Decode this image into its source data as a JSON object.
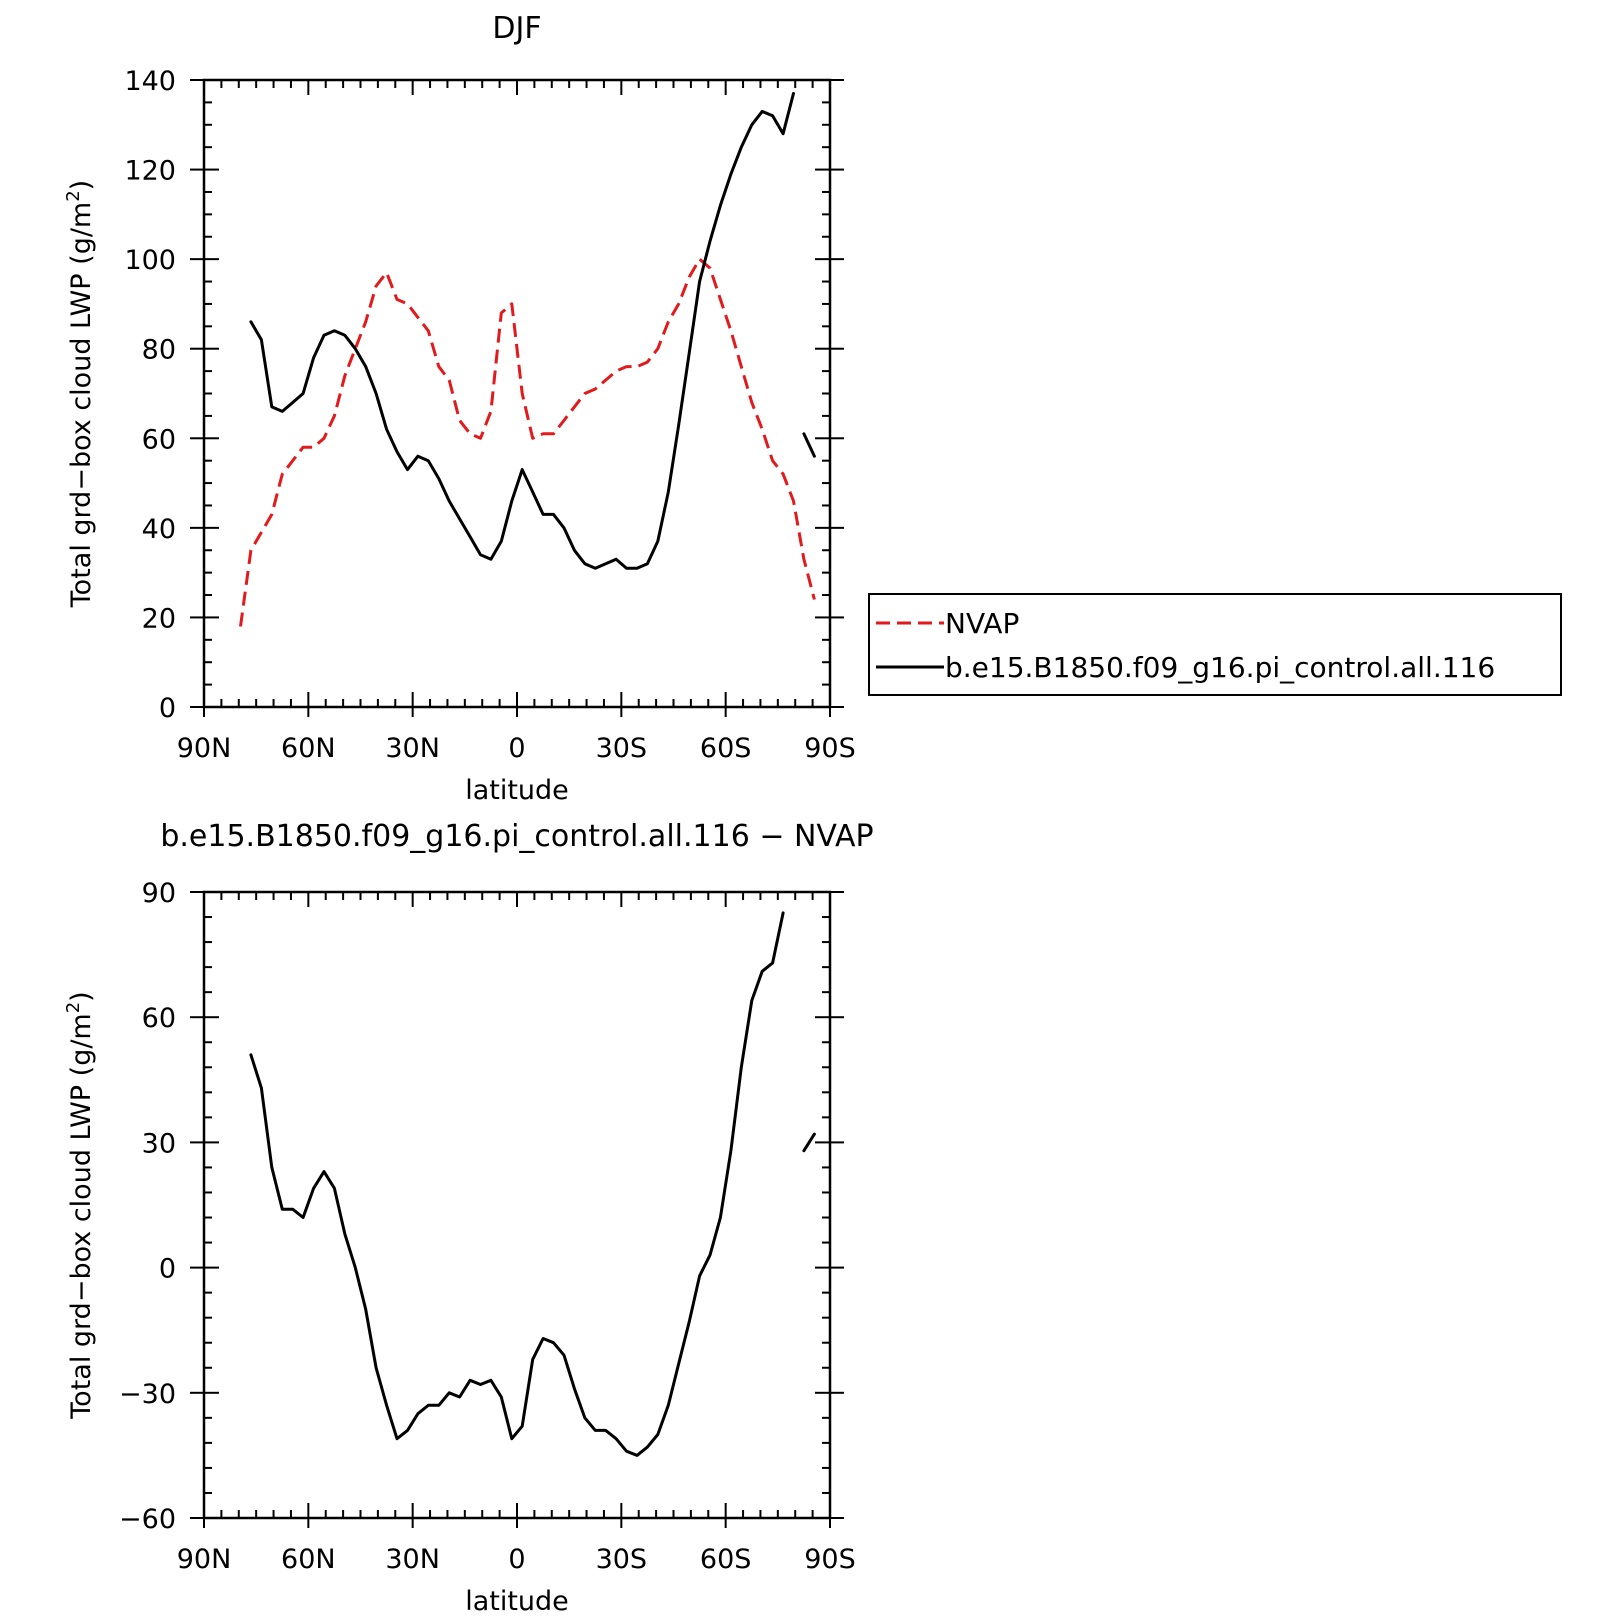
{
  "figure": {
    "panel1_title": "DJF",
    "panel2_title": "b.e15.B1850.f09_g16.pi_control.all.116 − NVAP",
    "legend": {
      "items": [
        {
          "label": "NVAP",
          "color": "#e31a1c",
          "dash": true
        },
        {
          "label": "b.e15.B1850.f09_g16.pi_control.all.116",
          "color": "#000000",
          "dash": false
        }
      ]
    }
  },
  "chart_data": [
    {
      "type": "line",
      "title": "DJF",
      "xlabel": "latitude",
      "ylabel_text": "Total grd−box cloud LWP (g/m",
      "ylabel_sup": "2",
      "ylabel_close": ")",
      "xlim": [
        90,
        -90
      ],
      "ylim": [
        0,
        140
      ],
      "xticks": [
        90,
        60,
        30,
        0,
        -30,
        -60,
        -90
      ],
      "xticklabels": [
        "90N",
        "60N",
        "30N",
        "0",
        "30S",
        "60S",
        "90S"
      ],
      "yticks": [
        0,
        20,
        40,
        60,
        80,
        100,
        120,
        140
      ],
      "yticklabels": [
        "0",
        "20",
        "40",
        "60",
        "80",
        "100",
        "120",
        "140"
      ],
      "legend_position": "right",
      "series": [
        {
          "name": "NVAP",
          "color": "#e31a1c",
          "dash": true,
          "segments": [
            [
              [
                79.5,
                18
              ],
              [
                76.5,
                35
              ],
              [
                73.5,
                39
              ],
              [
                70.5,
                43
              ],
              [
                67.5,
                52
              ],
              [
                64.5,
                55
              ],
              [
                61.5,
                58
              ],
              [
                58.5,
                58
              ],
              [
                55.5,
                60
              ],
              [
                52.5,
                65
              ],
              [
                49.5,
                74
              ],
              [
                46.5,
                80
              ],
              [
                43.5,
                86
              ],
              [
                40.5,
                94
              ],
              [
                37.5,
                97
              ],
              [
                34.5,
                91
              ],
              [
                31.5,
                90
              ],
              [
                28.5,
                87
              ],
              [
                25.5,
                84
              ],
              [
                22.5,
                76
              ],
              [
                19.5,
                73
              ],
              [
                16.5,
                64
              ],
              [
                13.5,
                61
              ],
              [
                10.5,
                60
              ],
              [
                7.5,
                66
              ],
              [
                4.5,
                88
              ],
              [
                1.5,
                90
              ],
              [
                -1.5,
                70
              ],
              [
                -4.5,
                60
              ],
              [
                -7.5,
                61
              ],
              [
                -10.5,
                61
              ],
              [
                -13.5,
                64
              ],
              [
                -16.5,
                67
              ],
              [
                -19.5,
                70
              ],
              [
                -22.5,
                71
              ],
              [
                -25.5,
                73
              ],
              [
                -28.5,
                75
              ],
              [
                -31.5,
                76
              ],
              [
                -34.5,
                76
              ],
              [
                -37.5,
                77
              ],
              [
                -40.5,
                80
              ],
              [
                -43.5,
                86
              ],
              [
                -46.5,
                90
              ],
              [
                -49.5,
                96
              ],
              [
                -52.5,
                100
              ],
              [
                -55.5,
                98
              ],
              [
                -58.5,
                91
              ],
              [
                -61.5,
                84
              ],
              [
                -64.5,
                76
              ],
              [
                -67.5,
                68
              ],
              [
                -70.5,
                62
              ],
              [
                -73.5,
                55
              ],
              [
                -76.5,
                52
              ],
              [
                -79.5,
                46
              ],
              [
                -82.5,
                33
              ],
              [
                -85.5,
                24
              ]
            ]
          ]
        },
        {
          "name": "b.e15.B1850.f09_g16.pi_control.all.116",
          "color": "#000000",
          "dash": false,
          "segments": [
            [
              [
                76.5,
                86
              ],
              [
                73.5,
                82
              ],
              [
                70.5,
                67
              ],
              [
                67.5,
                66
              ],
              [
                64.5,
                68
              ],
              [
                61.5,
                70
              ],
              [
                58.5,
                78
              ],
              [
                55.5,
                83
              ],
              [
                52.5,
                84
              ],
              [
                49.5,
                83
              ],
              [
                46.5,
                80
              ],
              [
                43.5,
                76
              ],
              [
                40.5,
                70
              ],
              [
                37.5,
                62
              ],
              [
                34.5,
                57
              ],
              [
                31.5,
                53
              ],
              [
                28.5,
                56
              ],
              [
                25.5,
                55
              ],
              [
                22.5,
                51
              ],
              [
                19.5,
                46
              ],
              [
                16.5,
                42
              ],
              [
                13.5,
                38
              ],
              [
                10.5,
                34
              ],
              [
                7.5,
                33
              ],
              [
                4.5,
                37
              ],
              [
                1.5,
                46
              ],
              [
                -1.5,
                53
              ],
              [
                -4.5,
                48
              ],
              [
                -7.5,
                43
              ],
              [
                -10.5,
                43
              ],
              [
                -13.5,
                40
              ],
              [
                -16.5,
                35
              ],
              [
                -19.5,
                32
              ],
              [
                -22.5,
                31
              ],
              [
                -25.5,
                32
              ],
              [
                -28.5,
                33
              ],
              [
                -31.5,
                31
              ],
              [
                -34.5,
                31
              ],
              [
                -37.5,
                32
              ],
              [
                -40.5,
                37
              ],
              [
                -43.5,
                48
              ],
              [
                -46.5,
                63
              ],
              [
                -49.5,
                79
              ],
              [
                -52.5,
                95
              ],
              [
                -55.5,
                104
              ],
              [
                -58.5,
                112
              ],
              [
                -61.5,
                119
              ],
              [
                -64.5,
                125
              ],
              [
                -67.5,
                130
              ],
              [
                -70.5,
                133
              ],
              [
                -73.5,
                132
              ],
              [
                -76.5,
                128
              ],
              [
                -79.5,
                137
              ]
            ],
            [
              [
                -82.5,
                61
              ],
              [
                -85.5,
                56
              ]
            ]
          ]
        }
      ]
    },
    {
      "type": "line",
      "title": "b.e15.B1850.f09_g16.pi_control.all.116 − NVAP",
      "xlabel": "latitude",
      "ylabel_text": "Total grd−box cloud LWP (g/m",
      "ylabel_sup": "2",
      "ylabel_close": ")",
      "xlim": [
        90,
        -90
      ],
      "ylim": [
        -60,
        90
      ],
      "xticks": [
        90,
        60,
        30,
        0,
        -30,
        -60,
        -90
      ],
      "xticklabels": [
        "90N",
        "60N",
        "30N",
        "0",
        "30S",
        "60S",
        "90S"
      ],
      "yticks": [
        -60,
        -30,
        0,
        30,
        60,
        90
      ],
      "yticklabels": [
        "−60",
        "−30",
        "0",
        "30",
        "60",
        "90"
      ],
      "series": [
        {
          "color": "#000000",
          "dash": false,
          "segments": [
            [
              [
                76.5,
                51
              ],
              [
                73.5,
                43
              ],
              [
                70.5,
                24
              ],
              [
                67.5,
                14
              ],
              [
                64.5,
                14
              ],
              [
                61.5,
                12
              ],
              [
                58.5,
                19
              ],
              [
                55.5,
                23
              ],
              [
                52.5,
                19
              ],
              [
                49.5,
                8
              ],
              [
                46.5,
                0
              ],
              [
                43.5,
                -10
              ],
              [
                40.5,
                -24
              ],
              [
                37.5,
                -33
              ],
              [
                34.5,
                -41
              ],
              [
                31.5,
                -39
              ],
              [
                28.5,
                -35
              ],
              [
                25.5,
                -33
              ],
              [
                22.5,
                -33
              ],
              [
                19.5,
                -30
              ],
              [
                16.5,
                -31
              ],
              [
                13.5,
                -27
              ],
              [
                10.5,
                -28
              ],
              [
                7.5,
                -27
              ],
              [
                4.5,
                -31
              ],
              [
                1.5,
                -41
              ],
              [
                -1.5,
                -38
              ],
              [
                -4.5,
                -22
              ],
              [
                -7.5,
                -17
              ],
              [
                -10.5,
                -18
              ],
              [
                -13.5,
                -21
              ],
              [
                -16.5,
                -29
              ],
              [
                -19.5,
                -36
              ],
              [
                -22.5,
                -39
              ],
              [
                -25.5,
                -39
              ],
              [
                -28.5,
                -41
              ],
              [
                -31.5,
                -44
              ],
              [
                -34.5,
                -45
              ],
              [
                -37.5,
                -43
              ],
              [
                -40.5,
                -40
              ],
              [
                -43.5,
                -33
              ],
              [
                -46.5,
                -23
              ],
              [
                -49.5,
                -13
              ],
              [
                -52.5,
                -2
              ],
              [
                -55.5,
                3
              ],
              [
                -58.5,
                12
              ],
              [
                -61.5,
                28
              ],
              [
                -64.5,
                48
              ],
              [
                -67.5,
                64
              ],
              [
                -70.5,
                71
              ],
              [
                -73.5,
                73
              ],
              [
                -76.5,
                85
              ]
            ],
            [
              [
                -82.5,
                28
              ],
              [
                -85.5,
                32
              ]
            ]
          ]
        }
      ]
    }
  ]
}
